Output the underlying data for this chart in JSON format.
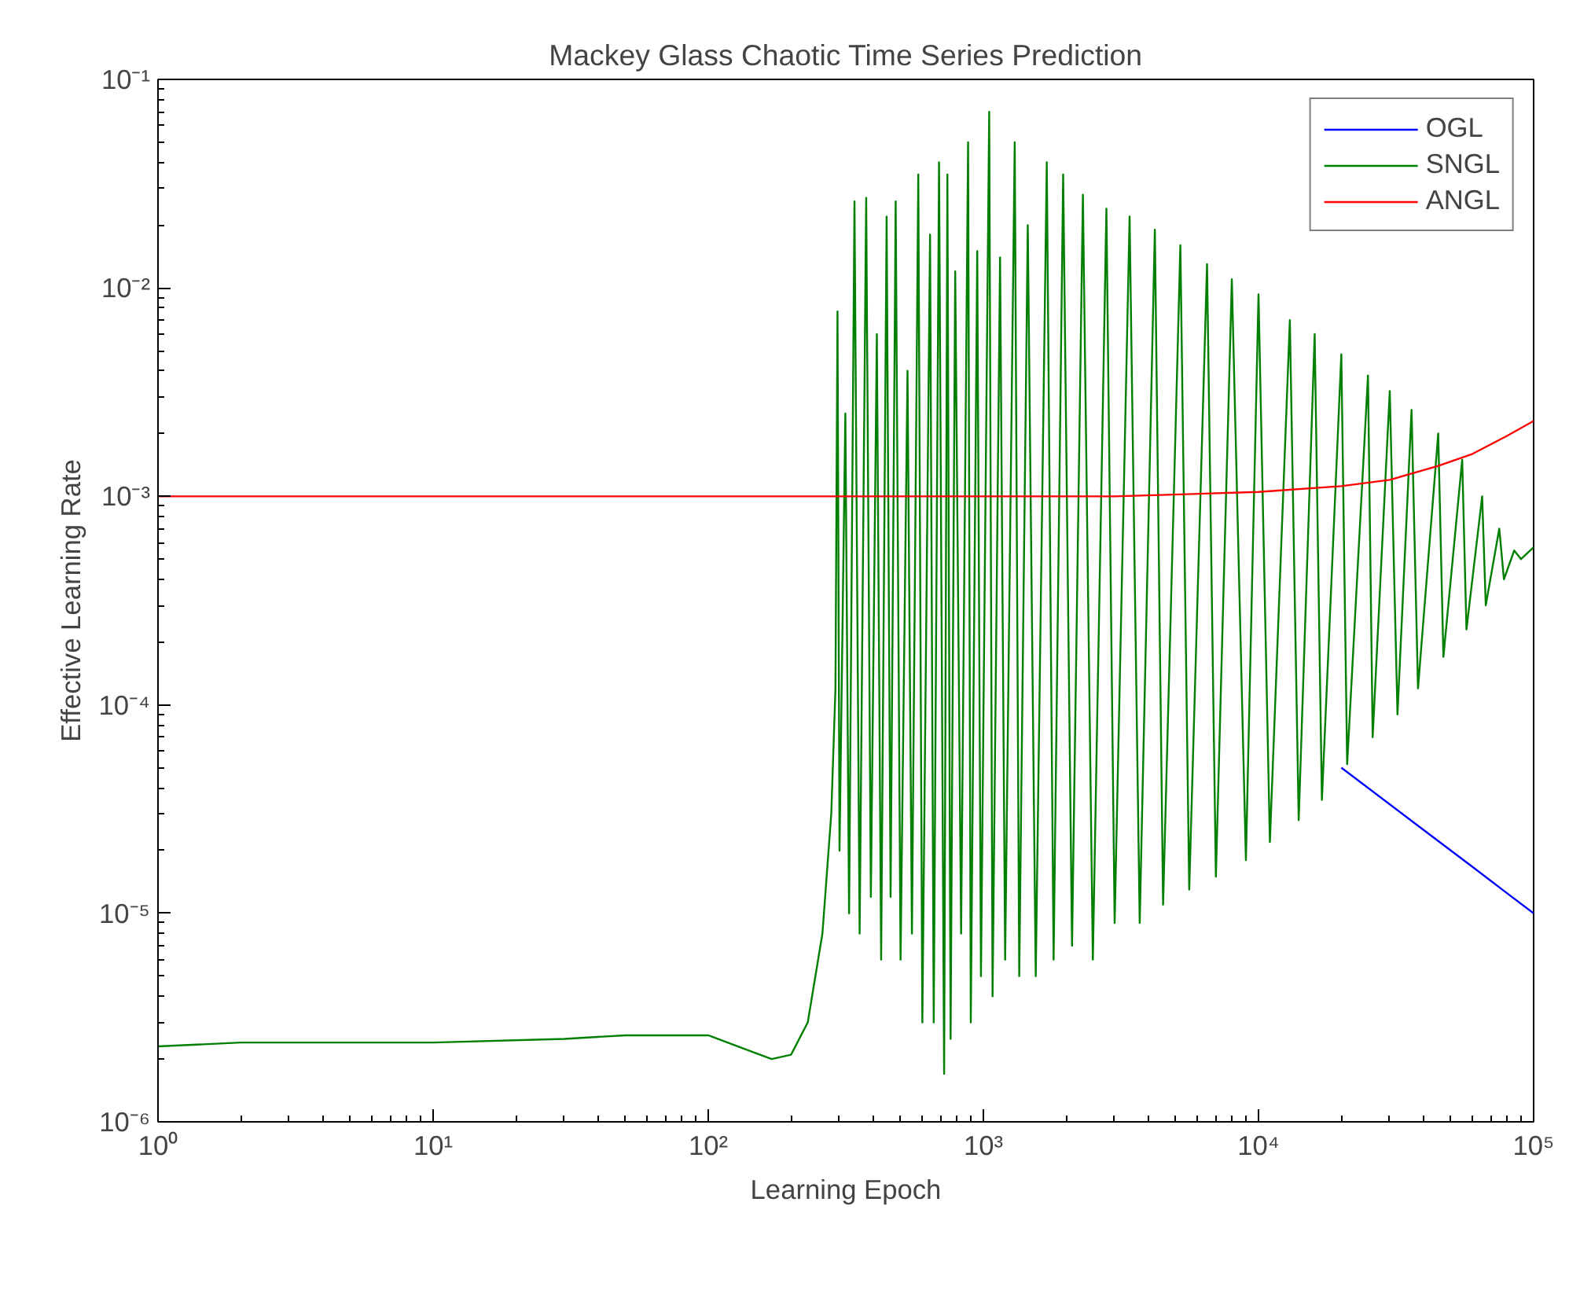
{
  "chart_data": {
    "type": "line",
    "title": "Mackey Glass Chaotic Time Series Prediction",
    "xlabel": "Learning Epoch",
    "ylabel": "Effective Learning Rate",
    "log": "xy",
    "legend": "top right",
    "xlim": [
      1,
      100000
    ],
    "ylim": [
      1e-06,
      0.1
    ],
    "xticks": [
      {
        "value": 1,
        "label": "10⁰"
      },
      {
        "value": 10,
        "label": "10¹"
      },
      {
        "value": 100,
        "label": "10²"
      },
      {
        "value": 1000,
        "label": "10³"
      },
      {
        "value": 10000,
        "label": "10⁴"
      },
      {
        "value": 100000,
        "label": "10⁵"
      }
    ],
    "yticks": [
      {
        "value": 1e-06,
        "label": "10⁻⁶"
      },
      {
        "value": 1e-05,
        "label": "10⁻⁵"
      },
      {
        "value": 0.0001,
        "label": "10⁻⁴"
      },
      {
        "value": 0.001,
        "label": "10⁻³"
      },
      {
        "value": 0.01,
        "label": "10⁻²"
      },
      {
        "value": 0.1,
        "label": "10⁻¹"
      }
    ],
    "series": [
      {
        "name": "OGL",
        "color": "#0000ff",
        "x": [
          20000,
          40000,
          60000,
          80000,
          100000
        ],
        "values": [
          5e-05,
          2.5e-05,
          1.67e-05,
          1.25e-05,
          1e-05
        ]
      },
      {
        "name": "SNGL",
        "color": "#007f00",
        "x": [
          1,
          2,
          10,
          30,
          50,
          100,
          140,
          170,
          200,
          230,
          260,
          280,
          290,
          295,
          300,
          315,
          325,
          340,
          355,
          375,
          390,
          410,
          425,
          445,
          460,
          480,
          500,
          530,
          550,
          580,
          600,
          640,
          660,
          690,
          720,
          740,
          760,
          790,
          830,
          880,
          900,
          950,
          980,
          1050,
          1080,
          1150,
          1200,
          1300,
          1350,
          1450,
          1550,
          1700,
          1800,
          1950,
          2100,
          2300,
          2500,
          2800,
          3000,
          3400,
          3700,
          4200,
          4500,
          5200,
          5600,
          6500,
          7000,
          8000,
          9000,
          10000,
          11000,
          13000,
          14000,
          16000,
          17000,
          20000,
          21000,
          25000,
          26000,
          30000,
          32000,
          36000,
          38000,
          45000,
          47000,
          55000,
          57000,
          65000,
          67000,
          75000,
          78000,
          85000,
          90000,
          100000
        ],
        "values": [
          2.3e-06,
          2.4e-06,
          2.4e-06,
          2.5e-06,
          2.6e-06,
          2.6e-06,
          2.2e-06,
          2e-06,
          2.1e-06,
          3e-06,
          8e-06,
          3e-05,
          0.00012,
          0.0077,
          2e-05,
          0.0025,
          1e-05,
          0.026,
          8e-06,
          0.027,
          1.2e-05,
          0.006,
          6e-06,
          0.022,
          1.2e-05,
          0.026,
          6e-06,
          0.004,
          8e-06,
          0.035,
          3e-06,
          0.018,
          3e-06,
          0.04,
          1.7e-06,
          0.035,
          2.5e-06,
          0.012,
          8e-06,
          0.05,
          3e-06,
          0.015,
          5e-06,
          0.07,
          4e-06,
          0.014,
          6e-06,
          0.05,
          5e-06,
          0.02,
          5e-06,
          0.04,
          6e-06,
          0.035,
          7e-06,
          0.028,
          6e-06,
          0.024,
          9e-06,
          0.022,
          9e-06,
          0.019,
          1.1e-05,
          0.016,
          1.3e-05,
          0.013,
          1.5e-05,
          0.011,
          1.8e-05,
          0.0093,
          2.2e-05,
          0.007,
          2.8e-05,
          0.006,
          3.5e-05,
          0.0048,
          5.2e-05,
          0.0038,
          7e-05,
          0.0032,
          9e-05,
          0.0026,
          0.00012,
          0.002,
          0.00017,
          0.0015,
          0.00023,
          0.001,
          0.0003,
          0.0007,
          0.0004,
          0.00055,
          0.0005,
          0.00057
        ]
      },
      {
        "name": "ANGL",
        "color": "#ff0000",
        "x": [
          1,
          100,
          1000,
          3000,
          10000,
          20000,
          30000,
          45000,
          60000,
          80000,
          100000
        ],
        "values": [
          0.001,
          0.001,
          0.001,
          0.001,
          0.00105,
          0.00112,
          0.0012,
          0.0014,
          0.0016,
          0.00195,
          0.0023
        ]
      }
    ]
  }
}
